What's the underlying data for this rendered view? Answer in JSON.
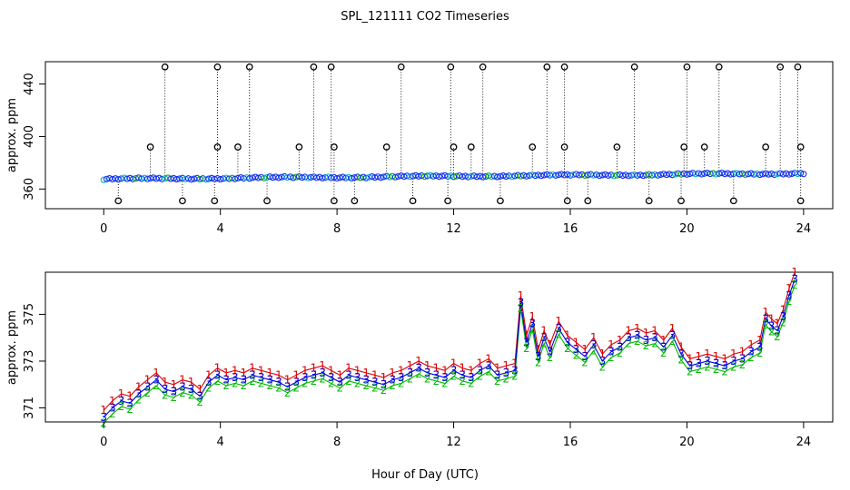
{
  "title": "SPL_121111  CO2 Timeseries",
  "xlabel": "Hour of Day (UTC)",
  "chart_data": [
    {
      "type": "scatter",
      "name": "top-panel",
      "ylabel": "approx. ppm",
      "xlim": [
        -2,
        25
      ],
      "ylim": [
        345,
        457
      ],
      "x_ticks": [
        0,
        4,
        8,
        12,
        16,
        20,
        24
      ],
      "x_tick_labels": [
        "0",
        "4",
        "8",
        "12",
        "16",
        "20",
        "24"
      ],
      "y_ticks": [
        360,
        400,
        440
      ],
      "y_tick_labels": [
        "360",
        "400",
        "440"
      ],
      "baseline": {
        "start": 367.5,
        "end": 372
      },
      "spikes_high": [
        2.1,
        3.9,
        5.0,
        7.2,
        7.8,
        10.2,
        11.9,
        13.0,
        15.2,
        15.8,
        18.2,
        20.0,
        21.1,
        23.2,
        23.8
      ],
      "high_value": 453,
      "spikes_mid": [
        1.6,
        3.9,
        4.6,
        6.7,
        7.9,
        9.7,
        12.0,
        12.6,
        14.7,
        15.8,
        17.6,
        19.9,
        20.6,
        22.7,
        23.9
      ],
      "mid_value": 392,
      "spikes_low": [
        0.5,
        2.7,
        3.8,
        5.6,
        7.9,
        8.6,
        10.6,
        11.8,
        13.6,
        15.9,
        16.6,
        18.7,
        19.8,
        21.6,
        23.9
      ],
      "low_value": 351
    },
    {
      "type": "line",
      "name": "bottom-panel",
      "ylabel": "approx. ppm",
      "xlim": [
        -2,
        25
      ],
      "ylim": [
        370.4,
        376.8
      ],
      "x_ticks": [
        0,
        4,
        8,
        12,
        16,
        20,
        24
      ],
      "x_tick_labels": [
        "0",
        "4",
        "8",
        "12",
        "16",
        "20",
        "24"
      ],
      "y_ticks": [
        371,
        373,
        375
      ],
      "y_tick_labels": [
        "371",
        "373",
        "375"
      ],
      "series": [
        {
          "name": "1",
          "label": "1",
          "color": "#dd0000",
          "offset": 0.3
        },
        {
          "name": "2",
          "label": "2",
          "color": "#00bb00",
          "offset": -0.25
        },
        {
          "name": "3",
          "label": "3",
          "color": "#0000dd",
          "offset": 0
        }
      ],
      "x": [
        0.0,
        0.3,
        0.6,
        0.9,
        1.2,
        1.5,
        1.8,
        2.1,
        2.4,
        2.7,
        3.0,
        3.3,
        3.6,
        3.9,
        4.2,
        4.5,
        4.8,
        5.1,
        5.4,
        5.7,
        6.0,
        6.3,
        6.6,
        6.9,
        7.2,
        7.5,
        7.8,
        8.1,
        8.4,
        8.7,
        9.0,
        9.3,
        9.6,
        9.9,
        10.2,
        10.5,
        10.8,
        11.1,
        11.4,
        11.7,
        12.0,
        12.3,
        12.6,
        12.9,
        13.2,
        13.5,
        13.8,
        14.1,
        14.3,
        14.5,
        14.7,
        14.9,
        15.1,
        15.3,
        15.6,
        15.9,
        16.2,
        16.5,
        16.8,
        17.1,
        17.4,
        17.7,
        18.0,
        18.3,
        18.6,
        18.9,
        19.2,
        19.5,
        19.8,
        20.1,
        20.4,
        20.7,
        21.0,
        21.3,
        21.6,
        21.9,
        22.2,
        22.5,
        22.7,
        22.9,
        23.1,
        23.3,
        23.5,
        23.7
      ],
      "values": [
        370.6,
        371.0,
        371.3,
        371.2,
        371.6,
        371.9,
        372.2,
        371.8,
        371.7,
        371.9,
        371.8,
        371.5,
        372.1,
        372.4,
        372.2,
        372.3,
        372.2,
        372.4,
        372.3,
        372.2,
        372.1,
        371.9,
        372.1,
        372.3,
        372.4,
        372.5,
        372.3,
        372.1,
        372.4,
        372.3,
        372.2,
        372.1,
        372.0,
        372.2,
        372.3,
        372.5,
        372.7,
        372.5,
        372.4,
        372.3,
        372.6,
        372.4,
        372.3,
        372.6,
        372.8,
        372.4,
        372.5,
        372.6,
        375.5,
        373.8,
        374.6,
        373.2,
        374.0,
        373.4,
        374.4,
        373.8,
        373.5,
        373.2,
        373.7,
        373.0,
        373.4,
        373.6,
        374.0,
        374.1,
        373.9,
        374.0,
        373.6,
        374.1,
        373.3,
        372.8,
        372.9,
        373.0,
        372.9,
        372.8,
        373.0,
        373.1,
        373.4,
        373.6,
        374.8,
        374.5,
        374.3,
        374.9,
        375.8,
        376.5
      ]
    }
  ]
}
